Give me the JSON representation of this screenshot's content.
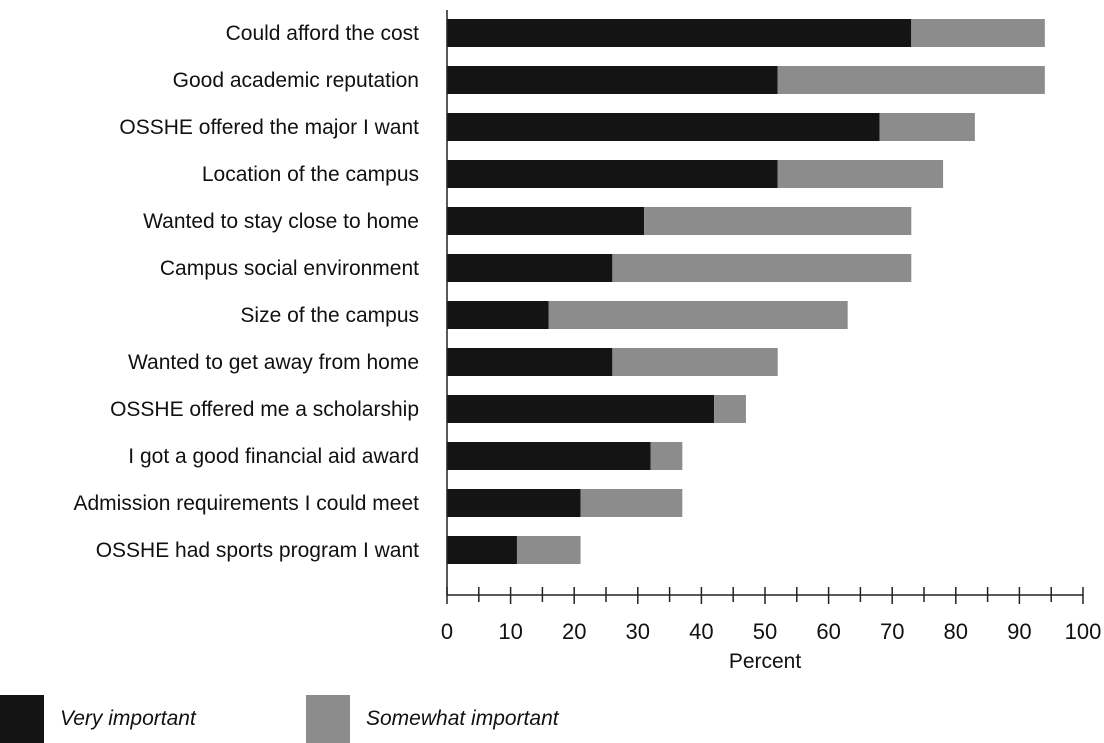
{
  "chart_data": {
    "type": "bar",
    "orientation": "horizontal",
    "stacked": true,
    "title": "",
    "xlabel": "Percent",
    "ylabel": "",
    "xlim": [
      0,
      100
    ],
    "xticks": [
      "0",
      "10",
      "20",
      "30",
      "40",
      "50",
      "60",
      "70",
      "80",
      "90",
      "100"
    ],
    "grid": false,
    "legend_position": "bottom-left",
    "categories": [
      "Could afford the cost",
      "Good academic reputation",
      "OSSHE offered the major I want",
      "Location of the campus",
      "Wanted to stay close to home",
      "Campus social environment",
      "Size of the campus",
      "Wanted to get away from home",
      "OSSHE offered me a scholarship",
      "I got a good financial aid award",
      "Admission requirements I could meet",
      "OSSHE had sports program I want"
    ],
    "series": [
      {
        "name": "Very important",
        "color": "#141414",
        "values": [
          73,
          52,
          68,
          52,
          31,
          26,
          16,
          26,
          42,
          32,
          21,
          11
        ]
      },
      {
        "name": "Somewhat important",
        "color": "#8c8c8c",
        "values": [
          21,
          42,
          15,
          26,
          42,
          47,
          47,
          26,
          5,
          5,
          16,
          10
        ]
      }
    ]
  }
}
